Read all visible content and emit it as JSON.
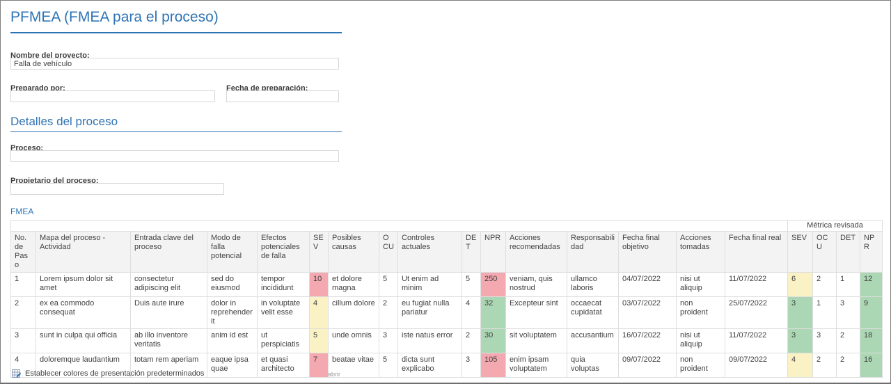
{
  "header": {
    "title": "PFMEA (FMEA para el proceso)"
  },
  "form": {
    "project_name": {
      "label": "Nombre del proyecto:",
      "value": "Falla de vehículo"
    },
    "prepared_by": {
      "label": "Preparado por:",
      "value": ""
    },
    "prep_date": {
      "label": "Fecha de preparación:",
      "value": ""
    },
    "section_title": "Detalles del proceso",
    "process": {
      "label": "Proceso:",
      "value": ""
    },
    "process_owner": {
      "label": "Propietario del proceso:",
      "value": ""
    }
  },
  "fmea": {
    "label": "FMEA",
    "group_header": "Métrica revisada",
    "columns": [
      "No. de Paso",
      "Mapa del proceso - Actividad",
      "Entrada clave del proceso",
      "Modo de falla potencial",
      "Efectos potenciales de falla",
      "SEV",
      "Posibles causas",
      "OCU",
      "Controles actuales",
      "DET",
      "NPR",
      "Acciones recomendadas",
      "Responsabilidad",
      "Fecha final objetivo",
      "Acciones tomadas",
      "Fecha final real",
      "SEV",
      "OCU",
      "DET",
      "NPR"
    ],
    "rows": [
      {
        "no": "1",
        "activity": "Lorem ipsum dolor sit amet",
        "key_input": "consectetur adipiscing elit",
        "failure_mode": "sed do eiusmod",
        "effects": "tempor incididunt",
        "sev": "10",
        "sev_color": "red",
        "causes": "et dolore magna",
        "ocu": "5",
        "controls": "Ut enim ad minim",
        "det": "5",
        "npr": "250",
        "npr_color": "red",
        "recommended": "veniam, quis nostrud",
        "responsibility": "ullamco laboris",
        "target_date": "04/07/2022",
        "actions_taken": "nisi ut aliquip",
        "actual_date": "11/07/2022",
        "sev2": "6",
        "sev2_color": "yellow",
        "ocu2": "2",
        "det2": "1",
        "npr2": "12",
        "npr2_color": "green"
      },
      {
        "no": "2",
        "activity": "ex ea commodo consequat",
        "key_input": "Duis aute irure",
        "failure_mode": "dolor in reprehenderit",
        "effects": "in voluptate velit esse",
        "sev": "4",
        "sev_color": "yellow",
        "causes": "cillum dolore",
        "ocu": "2",
        "controls": "eu fugiat nulla pariatur",
        "det": "4",
        "npr": "32",
        "npr_color": "green",
        "recommended": "Excepteur sint",
        "responsibility": "occaecat cupidatat",
        "target_date": "03/07/2022",
        "actions_taken": "non proident",
        "actual_date": "25/07/2022",
        "sev2": "3",
        "sev2_color": "green",
        "ocu2": "1",
        "det2": "3",
        "npr2": "9",
        "npr2_color": "green"
      },
      {
        "no": "3",
        "activity": "sunt in culpa qui officia",
        "key_input": "ab illo inventore veritatis",
        "failure_mode": "anim id est",
        "effects": "ut perspiciatis",
        "sev": "5",
        "sev_color": "yellow",
        "causes": "unde omnis",
        "ocu": "3",
        "controls": "iste natus error",
        "det": "2",
        "npr": "30",
        "npr_color": "green",
        "recommended": "sit voluptatem",
        "responsibility": "accusantium",
        "target_date": "16/07/2022",
        "actions_taken": "nisi ut aliquip",
        "actual_date": "11/07/2022",
        "sev2": "3",
        "sev2_color": "green",
        "ocu2": "3",
        "det2": "2",
        "npr2": "18",
        "npr2_color": "green"
      },
      {
        "no": "4",
        "activity": "doloremque laudantium",
        "key_input": "totam rem aperiam",
        "failure_mode": "eaque ipsa quae",
        "effects": "et quasi architecto",
        "sev": "7",
        "sev_color": "red",
        "causes": "beatae vitae",
        "ocu": "5",
        "controls": "dicta sunt explicabo",
        "det": "3",
        "npr": "105",
        "npr_color": "red",
        "recommended": "enim ipsam voluptatem",
        "responsibility": "quia voluptas",
        "target_date": "09/07/2022",
        "actions_taken": "non proident",
        "actual_date": "09/07/2022",
        "sev2": "4",
        "sev2_color": "yellow",
        "ocu2": "2",
        "det2": "2",
        "npr2": "16",
        "npr2_color": "green"
      }
    ]
  },
  "footer": {
    "set_colors_label": "Establecer colores de presentación predeterminados",
    "open_label": "abrir"
  },
  "colors": {
    "accent": "#2e74b5",
    "risk_red": "#f4a8b0",
    "risk_yellow": "#faf2c4",
    "risk_green": "#acd7b4",
    "header_bg": "#f3f3f3",
    "border": "#dedede",
    "text": "#404040"
  }
}
